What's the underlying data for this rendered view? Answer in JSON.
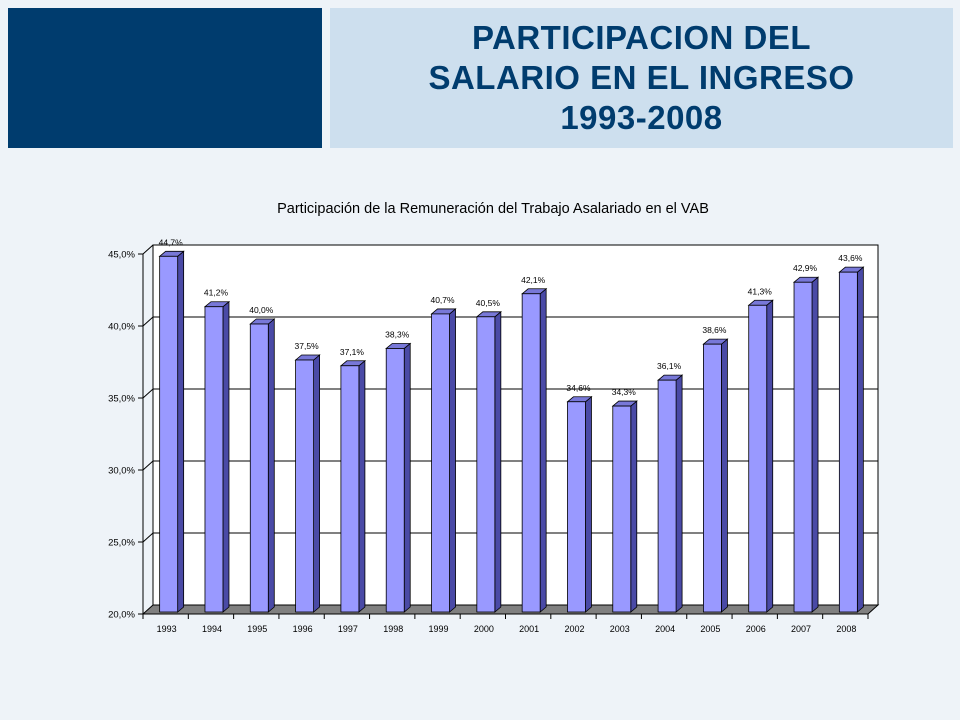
{
  "slide": {
    "title_lines": [
      "PARTICIPACION DEL",
      "SALARIO EN EL INGRESO",
      "1993-2008"
    ]
  },
  "colors": {
    "navy": "#003c6e",
    "panel": "#cddfee",
    "background": "#eef3f8",
    "bar_front": "#9999ff",
    "bar_side": "#4a4aa6",
    "bar_top": "#7878d8",
    "floor": "#808080"
  },
  "chart_data": {
    "type": "bar",
    "title": "Participación de la Remuneración del Trabajo Asalariado en el VAB",
    "xlabel": "",
    "ylabel": "",
    "categories": [
      "1993",
      "1994",
      "1995",
      "1996",
      "1997",
      "1998",
      "1999",
      "2000",
      "2001",
      "2002",
      "2003",
      "2004",
      "2005",
      "2006",
      "2007",
      "2008"
    ],
    "values": [
      44.7,
      41.2,
      40.0,
      37.5,
      37.1,
      38.3,
      40.7,
      40.5,
      42.1,
      34.6,
      34.3,
      36.1,
      38.6,
      41.3,
      42.9,
      43.6
    ],
    "value_labels": [
      "44,7%",
      "41,2%",
      "40,0%",
      "37,5%",
      "37,1%",
      "38,3%",
      "40,7%",
      "40,5%",
      "42,1%",
      "34,6%",
      "34,3%",
      "36,1%",
      "38,6%",
      "41,3%",
      "42,9%",
      "43,6%"
    ],
    "yticks": [
      20,
      25,
      30,
      35,
      40,
      45
    ],
    "ytick_labels": [
      "20,0%",
      "25,0%",
      "30,0%",
      "35,0%",
      "40,0%",
      "45,0%"
    ],
    "ylim": [
      20,
      45
    ],
    "grid": true,
    "three_d": true,
    "legend": false
  }
}
